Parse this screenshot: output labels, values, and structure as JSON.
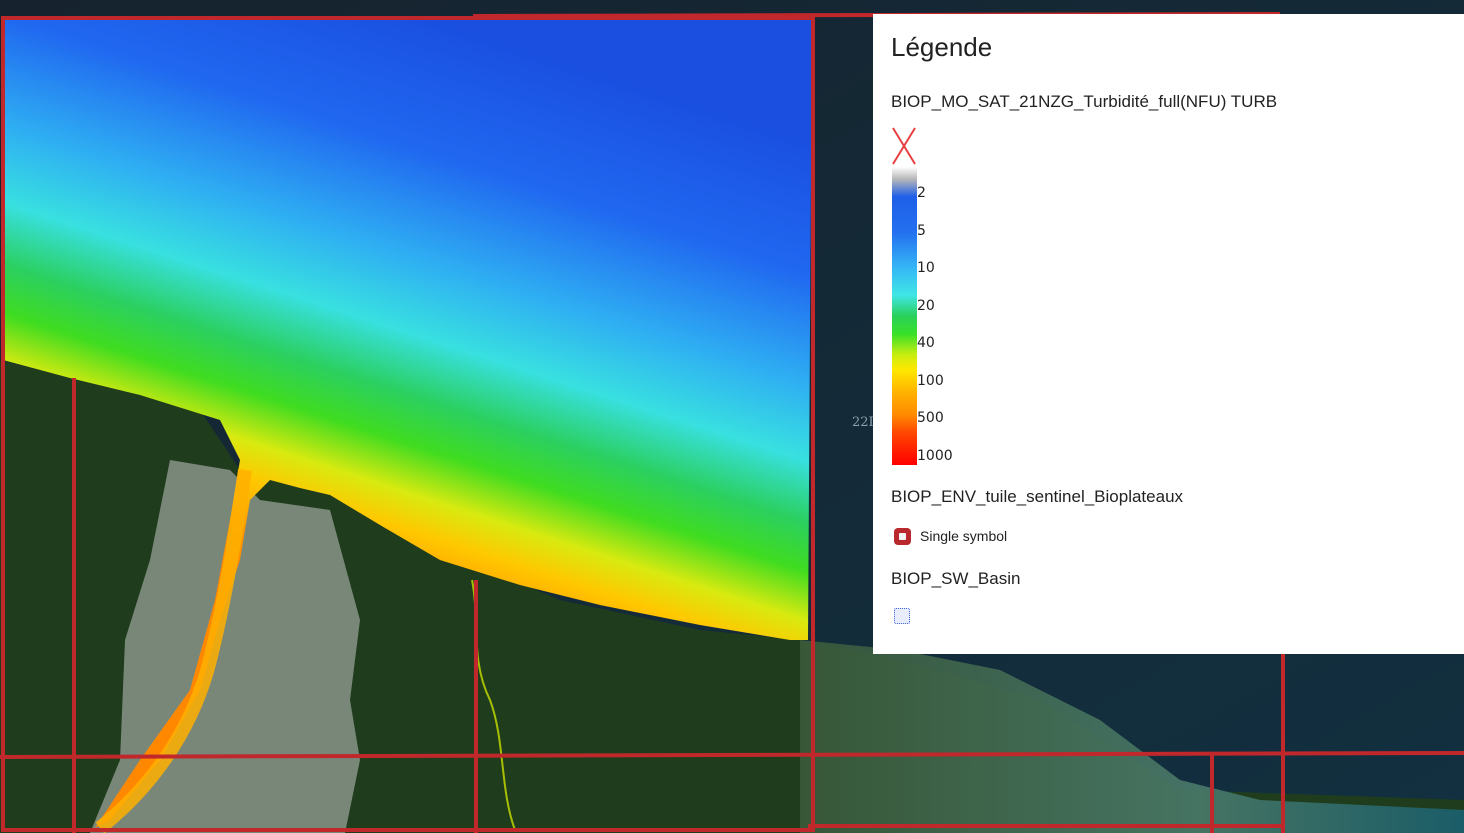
{
  "legend": {
    "title": "Légende",
    "layers": [
      {
        "name": "BIOP_MO_SAT_21NZG_Turbidité_full(NFU) TURB",
        "type": "color-ramp",
        "nodata_icon": "red-x-icon",
        "ticks": [
          "2",
          "5",
          "10",
          "20",
          "40",
          "100",
          "500",
          "1000"
        ],
        "colors": [
          "#1e5fe8",
          "#35b8f5",
          "#3fe6e6",
          "#2ad05a",
          "#ffe800",
          "#ff8c00",
          "#ff4800",
          "#ff0000"
        ]
      },
      {
        "name": "BIOP_ENV_tuile_sentinel_Bioplateaux",
        "type": "single-symbol",
        "symbol_label": "Single symbol",
        "symbol_color": "#b8282c"
      },
      {
        "name": "BIOP_SW_Basin",
        "type": "polygon",
        "symbol_color": "#4060d0"
      }
    ]
  },
  "map": {
    "partial_label": "22I",
    "tile_outline_color": "#c0282c",
    "turbidity_layer": "BIOP_MO_SAT_21NZG_Turbidité_full(NFU) TURB"
  }
}
